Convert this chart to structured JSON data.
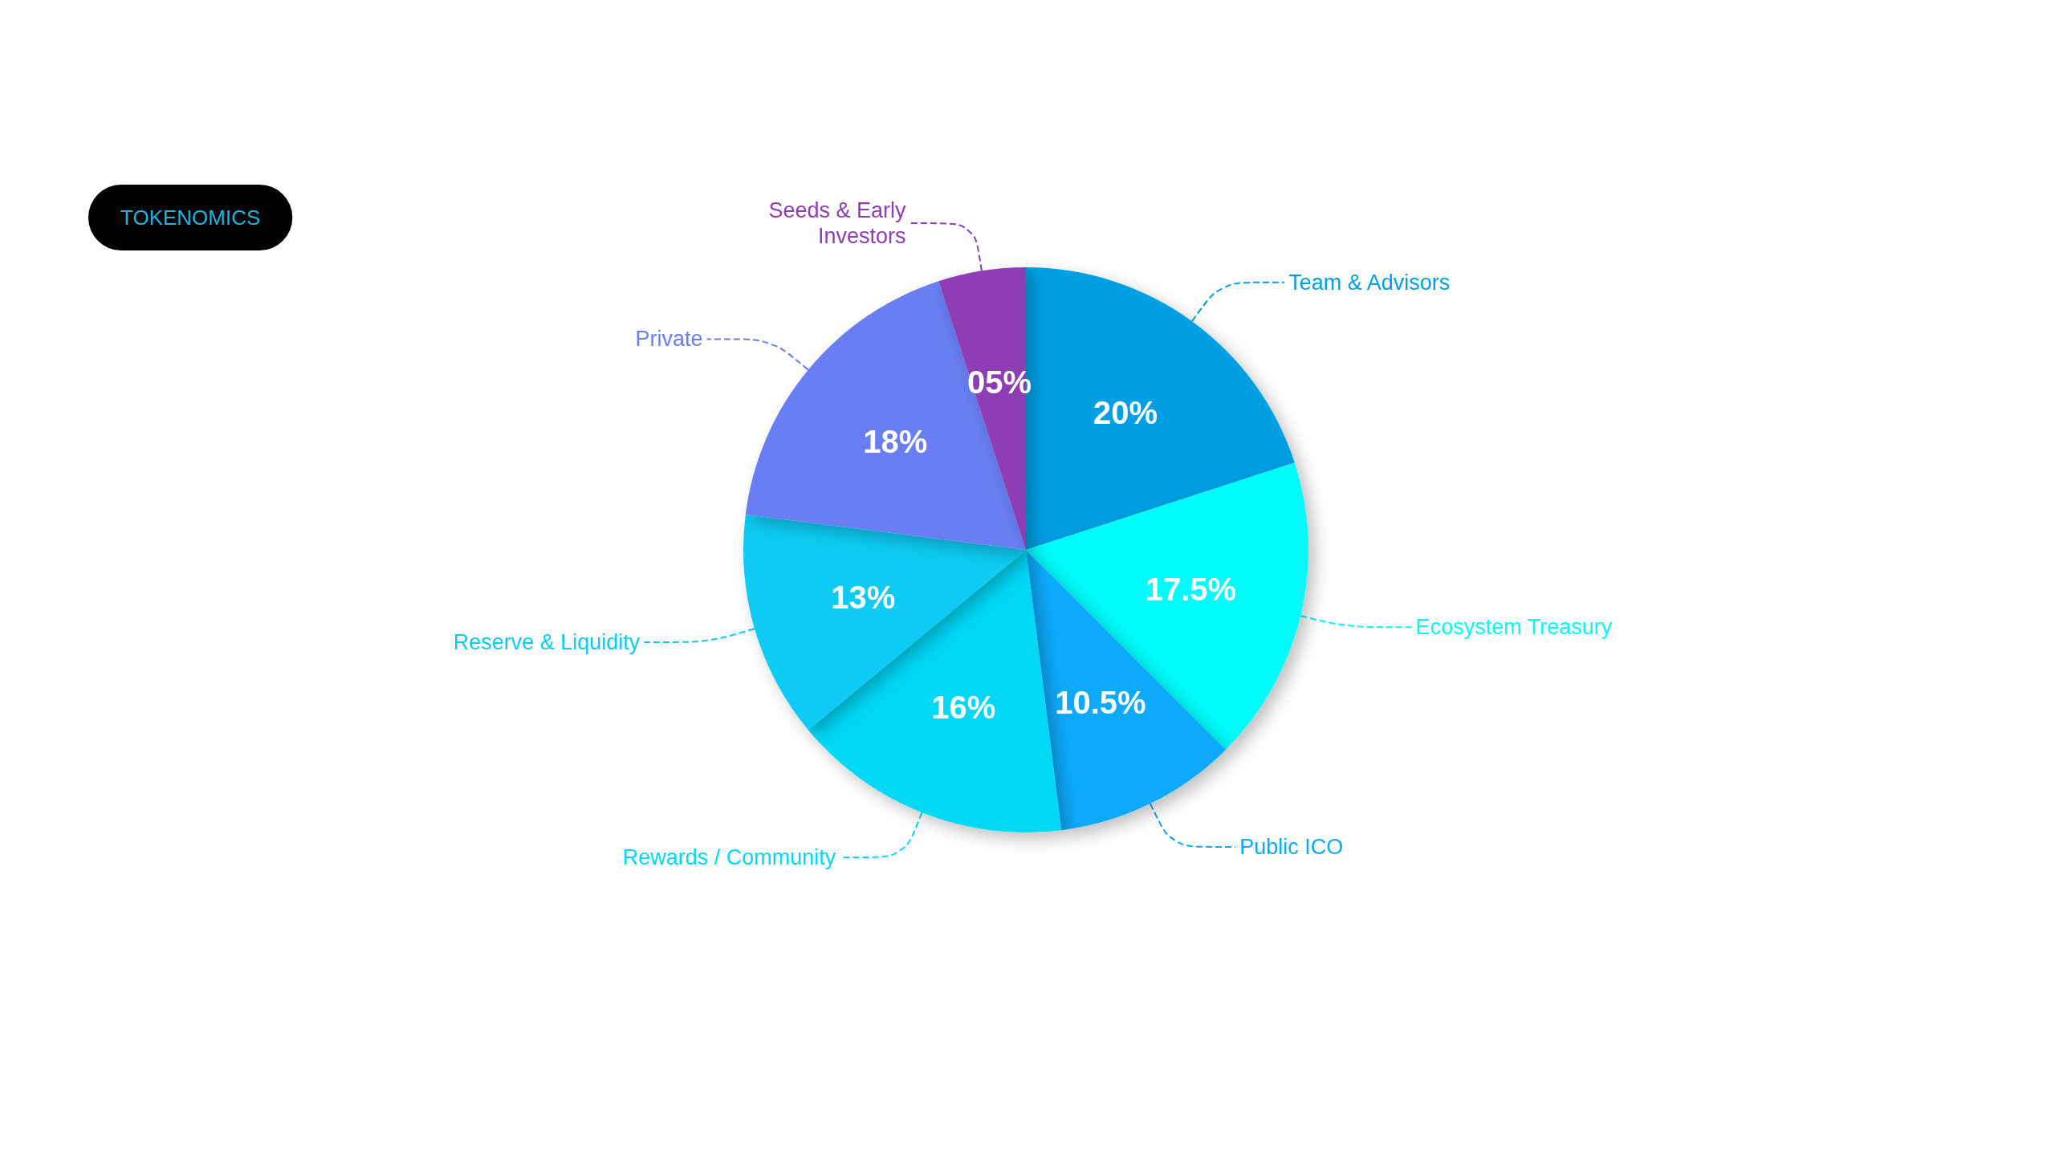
{
  "chart_data": {
    "type": "pie",
    "title": "TOKENOMICS",
    "categories": [
      "Team & Advisors",
      "Ecosystem Treasury",
      "Public ICO",
      "Rewards / Community",
      "Reserve & Liquidity",
      "Private",
      "Seeds & Early\nInvestors"
    ],
    "values": [
      20,
      17.5,
      10.5,
      16,
      13,
      18,
      5
    ],
    "value_labels": [
      "20%",
      "17.5%",
      "10.5%",
      "16%",
      "13%",
      "18%",
      "05%"
    ],
    "colors": [
      "#009ee2",
      "#00fbfb",
      "#07aafc",
      "#00d8f6",
      "#0acbf2",
      "#687ef2",
      "#8f3db5"
    ],
    "legend": false
  }
}
